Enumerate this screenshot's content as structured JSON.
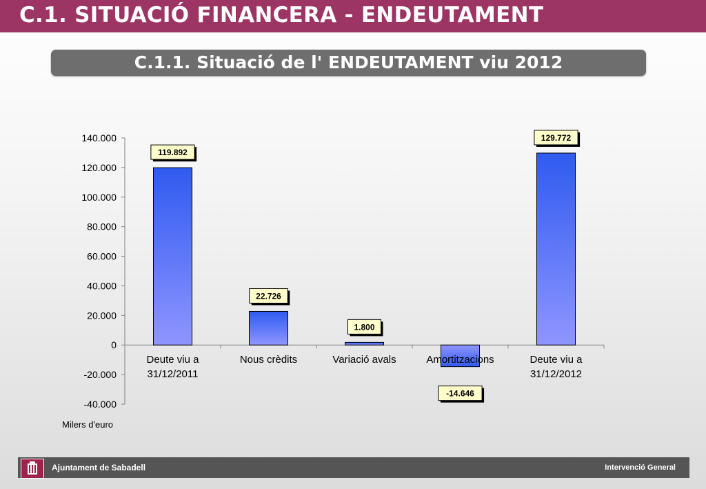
{
  "header": {
    "title": "C.1. SITUACIÓ FINANCERA - ENDEUTAMENT"
  },
  "subtitle": "C.1.1. Situació de l' ENDEUTAMENT viu 2012",
  "unit_label": "Milers d'euro",
  "footer": {
    "left": "Ajuntament de Sabadell",
    "right": "Intervenció General"
  },
  "colors": {
    "header": "#9c3464",
    "bar_top": "#2f5bf0",
    "bar_bottom": "#8f95ff",
    "label_fill": "#ffffcc",
    "footer": "#555555"
  },
  "chart_data": {
    "type": "bar",
    "categories": [
      [
        "Deute viu a",
        "31/12/2011"
      ],
      [
        "Nous crèdits"
      ],
      [
        "Variació avals"
      ],
      [
        "Amortitzacions"
      ],
      [
        "Deute viu a",
        "31/12/2012"
      ]
    ],
    "values": [
      119892,
      22726,
      1800,
      -14646,
      129772
    ],
    "value_labels": [
      "119.892",
      "22.726",
      "1.800",
      "-14.646",
      "129.772"
    ],
    "ylim": [
      -40000,
      140000
    ],
    "yticks": [
      140000,
      120000,
      100000,
      80000,
      60000,
      40000,
      20000,
      0,
      -20000,
      -40000
    ],
    "ytick_labels": [
      "140.000",
      "120.000",
      "100.000",
      "80.000",
      "60.000",
      "40.000",
      "20.000",
      "0",
      "-20.000",
      "-40.000"
    ],
    "title": "",
    "xlabel": "",
    "ylabel": "Milers d'euro",
    "grid": false,
    "legend": "none"
  }
}
